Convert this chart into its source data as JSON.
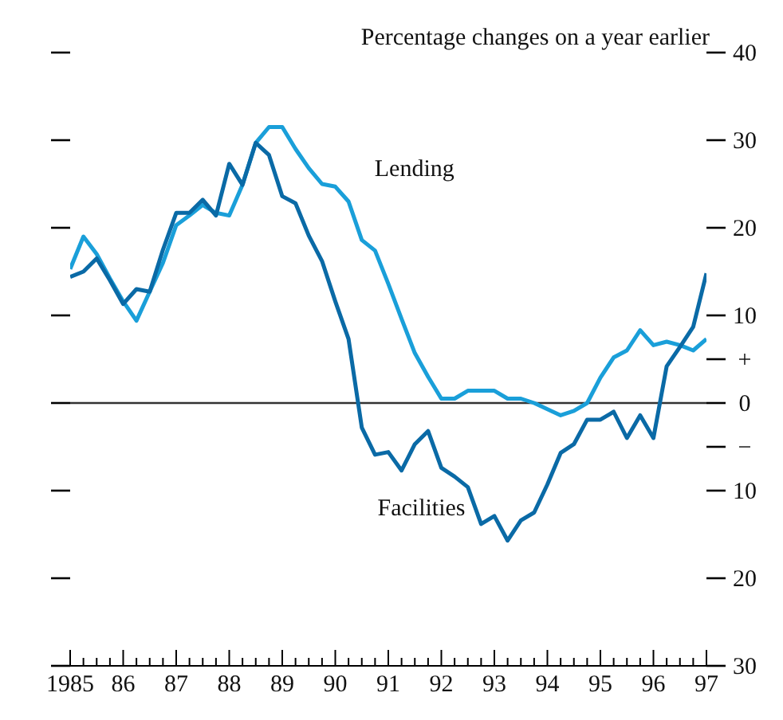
{
  "chart_data": {
    "type": "line",
    "ylabel": "Percentage changes on a year earlier",
    "x": [
      1985,
      1985.25,
      1985.5,
      1985.75,
      1986,
      1986.25,
      1986.5,
      1986.75,
      1987,
      1987.25,
      1987.5,
      1987.75,
      1988,
      1988.25,
      1988.5,
      1988.75,
      1989,
      1989.25,
      1989.5,
      1989.75,
      1990,
      1990.25,
      1990.5,
      1990.75,
      1991,
      1991.25,
      1991.5,
      1991.75,
      1992,
      1992.25,
      1992.5,
      1992.75,
      1993,
      1993.25,
      1993.5,
      1993.75,
      1994,
      1994.25,
      1994.5,
      1994.75,
      1995,
      1995.25,
      1995.5,
      1995.75,
      1996,
      1996.25,
      1996.5,
      1996.75,
      1997
    ],
    "series": [
      {
        "name": "Lending",
        "color": "#1a9fd9",
        "values": [
          15.3,
          19,
          17,
          14.2,
          11.6,
          9.4,
          12.7,
          16,
          20.3,
          21.4,
          22.6,
          21.7,
          21.4,
          24.9,
          29.7,
          31.5,
          31.5,
          29,
          26.8,
          25,
          24.7,
          23,
          18.6,
          17.4,
          13.6,
          9.6,
          5.7,
          3,
          0.5,
          0.5,
          1.4,
          1.4,
          1.4,
          0.5,
          0.5,
          0,
          -0.7,
          -1.4,
          -0.9,
          0,
          2.9,
          5.2,
          6,
          8.3,
          6.6,
          7,
          6.6,
          6,
          7.3
        ]
      },
      {
        "name": "Facilities",
        "color": "#0a6aa6",
        "values": [
          14.4,
          15,
          16.5,
          14,
          11.3,
          13,
          12.7,
          17.5,
          21.7,
          21.7,
          23.2,
          21.4,
          27.3,
          24.9,
          29.7,
          28.3,
          23.6,
          22.8,
          19.1,
          16.2,
          11.6,
          7.3,
          -2.8,
          -5.9,
          -5.6,
          -7.7,
          -4.7,
          -3.2,
          -7.4,
          -8.4,
          -9.6,
          -13.8,
          -12.9,
          -15.7,
          -13.4,
          -12.5,
          -9.3,
          -5.7,
          -4.7,
          -1.9,
          -1.9,
          -1,
          -4,
          -1.4,
          -4,
          4.2,
          6.4,
          8.7,
          14.8
        ]
      }
    ],
    "xlim": [
      1985,
      1997
    ],
    "xticks": [
      {
        "value": 1985,
        "label": "1985"
      },
      {
        "value": 1985.25,
        "label": null
      },
      {
        "value": 1985.5,
        "label": null
      },
      {
        "value": 1985.75,
        "label": null
      },
      {
        "value": 1986,
        "label": "86"
      },
      {
        "value": 1986.25,
        "label": null
      },
      {
        "value": 1986.5,
        "label": null
      },
      {
        "value": 1986.75,
        "label": null
      },
      {
        "value": 1987,
        "label": "87"
      },
      {
        "value": 1987.25,
        "label": null
      },
      {
        "value": 1987.5,
        "label": null
      },
      {
        "value": 1987.75,
        "label": null
      },
      {
        "value": 1988,
        "label": "88"
      },
      {
        "value": 1988.25,
        "label": null
      },
      {
        "value": 1988.5,
        "label": null
      },
      {
        "value": 1988.75,
        "label": null
      },
      {
        "value": 1989,
        "label": "89"
      },
      {
        "value": 1989.25,
        "label": null
      },
      {
        "value": 1989.5,
        "label": null
      },
      {
        "value": 1989.75,
        "label": null
      },
      {
        "value": 1990,
        "label": "90"
      },
      {
        "value": 1990.25,
        "label": null
      },
      {
        "value": 1990.5,
        "label": null
      },
      {
        "value": 1990.75,
        "label": null
      },
      {
        "value": 1991,
        "label": "91"
      },
      {
        "value": 1991.25,
        "label": null
      },
      {
        "value": 1991.5,
        "label": null
      },
      {
        "value": 1991.75,
        "label": null
      },
      {
        "value": 1992,
        "label": "92"
      },
      {
        "value": 1992.25,
        "label": null
      },
      {
        "value": 1992.5,
        "label": null
      },
      {
        "value": 1992.75,
        "label": null
      },
      {
        "value": 1993,
        "label": "93"
      },
      {
        "value": 1993.25,
        "label": null
      },
      {
        "value": 1993.5,
        "label": null
      },
      {
        "value": 1993.75,
        "label": null
      },
      {
        "value": 1994,
        "label": "94"
      },
      {
        "value": 1994.25,
        "label": null
      },
      {
        "value": 1994.5,
        "label": null
      },
      {
        "value": 1994.75,
        "label": null
      },
      {
        "value": 1995,
        "label": "95"
      },
      {
        "value": 1995.25,
        "label": null
      },
      {
        "value": 1995.5,
        "label": null
      },
      {
        "value": 1995.75,
        "label": null
      },
      {
        "value": 1996,
        "label": "96"
      },
      {
        "value": 1996.25,
        "label": null
      },
      {
        "value": 1996.5,
        "label": null
      },
      {
        "value": 1996.75,
        "label": null
      },
      {
        "value": 1997,
        "label": "97"
      }
    ],
    "ylim": [
      -30,
      40
    ],
    "yticks": [
      40,
      30,
      20,
      10,
      {
        "value": 5,
        "label": "+"
      },
      0,
      {
        "value": -5,
        "label": "−"
      },
      {
        "value": -10,
        "label": "10"
      },
      {
        "value": -20,
        "label": "20"
      },
      {
        "value": -30,
        "label": "30"
      }
    ],
    "ref_lines": [
      {
        "axis": "y",
        "value": 0,
        "color": "#333333"
      }
    ],
    "marker": "none",
    "line_style": "solid",
    "grid": false,
    "legend": false
  }
}
